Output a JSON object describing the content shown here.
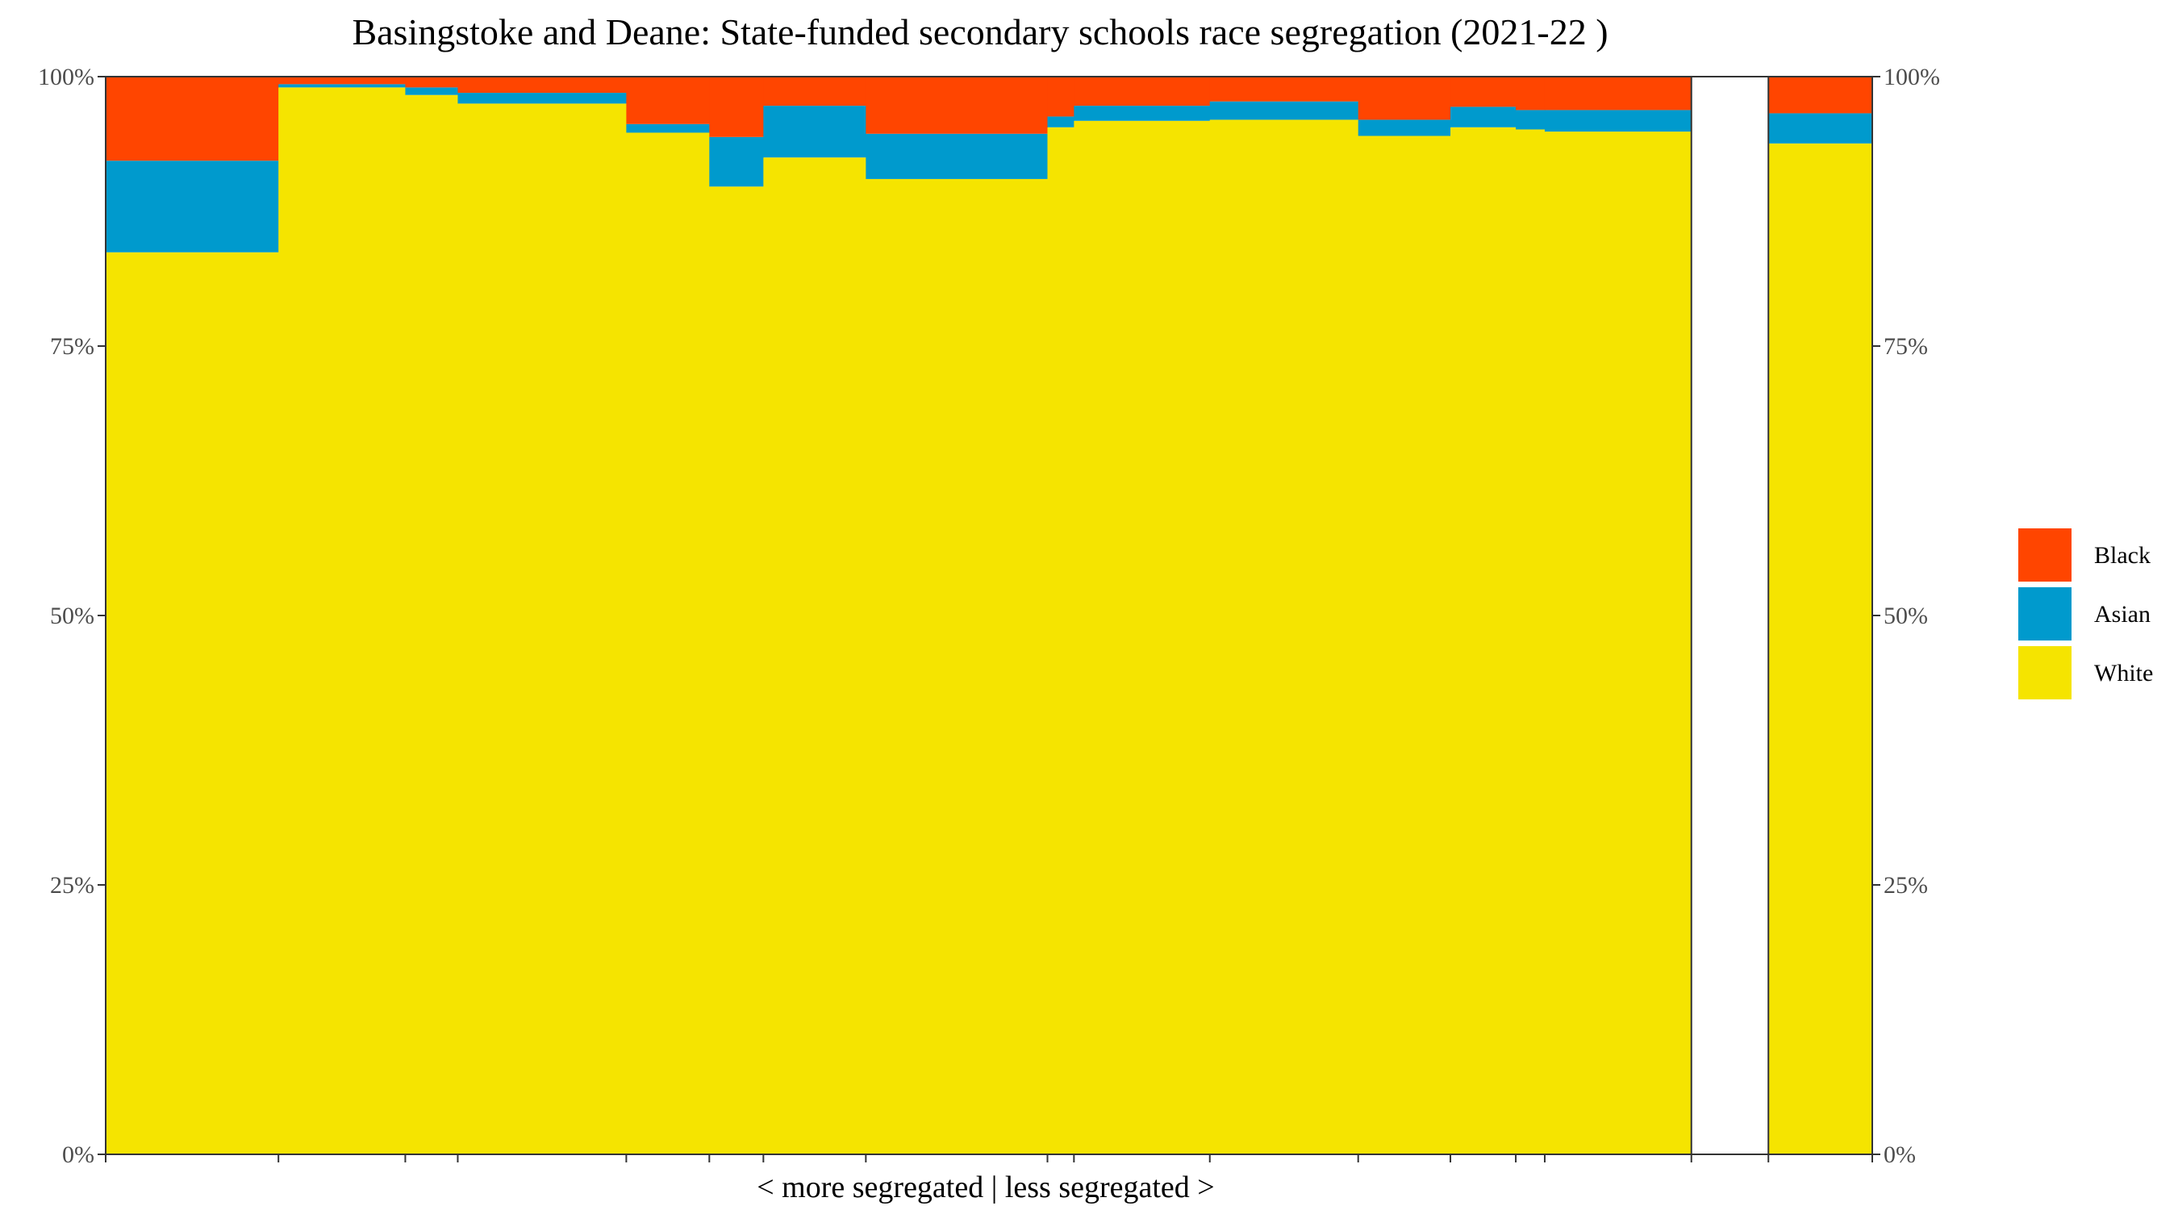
{
  "chart_data": {
    "type": "bar",
    "subtype": "stacked-variable-width (marimekko)",
    "title": "Basingstoke and Deane: State-funded secondary schools race segregation (2021-22 )",
    "xlabel": "< more segregated | less segregated >",
    "ylabel": "",
    "ylim": [
      0,
      1
    ],
    "y_ticks": [
      "0%",
      "25%",
      "50%",
      "75%",
      "100%"
    ],
    "y_tick_values": [
      0,
      0.25,
      0.5,
      0.75,
      1
    ],
    "grid": false,
    "legend_position": "right",
    "stack_order": [
      "White",
      "Asian",
      "Black"
    ],
    "legend": [
      {
        "name": "Black",
        "color": "#FF4500"
      },
      {
        "name": "Asian",
        "color": "#009ACD"
      },
      {
        "name": "White",
        "color": "#F5E400"
      }
    ],
    "colors": {
      "Black": "#FF4500",
      "Asian": "#009ACD",
      "White": "#F5E400",
      "gap": "#ffffff"
    },
    "segments": [
      {
        "width": 0.0978,
        "White": 0.837,
        "Asian": 0.085,
        "Black": 0.078
      },
      {
        "width": 0.0718,
        "White": 0.99,
        "Asian": 0.003,
        "Black": 0.007
      },
      {
        "width": 0.0297,
        "White": 0.983,
        "Asian": 0.007,
        "Black": 0.01
      },
      {
        "width": 0.0954,
        "White": 0.975,
        "Asian": 0.01,
        "Black": 0.015
      },
      {
        "width": 0.047,
        "White": 0.948,
        "Asian": 0.008,
        "Black": 0.044
      },
      {
        "width": 0.0306,
        "White": 0.898,
        "Asian": 0.046,
        "Black": 0.056
      },
      {
        "width": 0.058,
        "White": 0.925,
        "Asian": 0.048,
        "Black": 0.027
      },
      {
        "width": 0.1028,
        "White": 0.905,
        "Asian": 0.042,
        "Black": 0.053
      },
      {
        "width": 0.015,
        "White": 0.953,
        "Asian": 0.01,
        "Black": 0.037
      },
      {
        "width": 0.0769,
        "White": 0.959,
        "Asian": 0.014,
        "Black": 0.027
      },
      {
        "width": 0.084,
        "White": 0.96,
        "Asian": 0.017,
        "Black": 0.023
      },
      {
        "width": 0.0522,
        "White": 0.945,
        "Asian": 0.015,
        "Black": 0.04
      },
      {
        "width": 0.037,
        "White": 0.953,
        "Asian": 0.019,
        "Black": 0.028
      },
      {
        "width": 0.0164,
        "White": 0.951,
        "Asian": 0.018,
        "Black": 0.031
      },
      {
        "width": 0.083,
        "White": 0.949,
        "Asian": 0.02,
        "Black": 0.031
      }
    ],
    "gap_width": 0.0436,
    "overall": {
      "width": 0.0436,
      "White": 0.938,
      "Asian": 0.028,
      "Black": 0.034
    }
  }
}
